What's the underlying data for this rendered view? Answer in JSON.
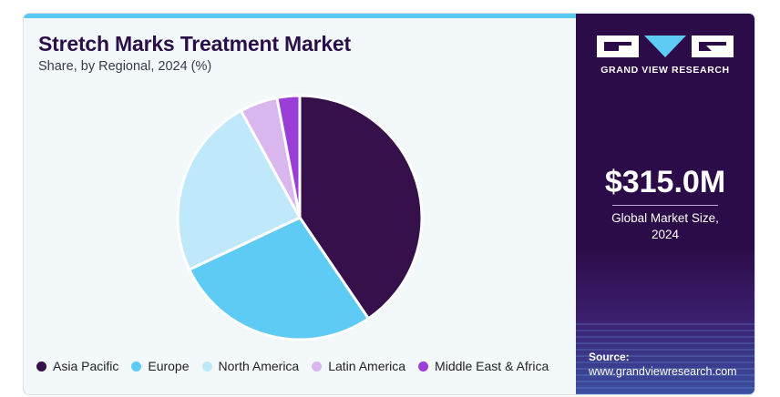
{
  "header": {
    "title": "Stretch Marks Treatment Market",
    "subtitle": "Share, by Regional, 2024 (%)"
  },
  "colors": {
    "accent_bar": "#59c8f0",
    "panel_bg": "#2c0c48",
    "title": "#2b0f48"
  },
  "chart_data": {
    "type": "pie",
    "categories": [
      "Asia Pacific",
      "Europe",
      "North America",
      "Latin America",
      "Middle East & Africa"
    ],
    "values": [
      40.5,
      27.5,
      24.0,
      5.0,
      3.0
    ],
    "colors": [
      "#36104a",
      "#5ecbf5",
      "#bfe9fa",
      "#d9b6ee",
      "#9b3ed8"
    ],
    "start_angle_deg": 0,
    "direction": "clockwise",
    "legend": "bottom"
  },
  "sidebar": {
    "logo_text": "GRAND VIEW RESEARCH",
    "market_size_value": "$315.0M",
    "market_size_label": "Global Market Size,\n2024",
    "source_label": "Source:",
    "source_url": "www.grandviewresearch.com"
  }
}
